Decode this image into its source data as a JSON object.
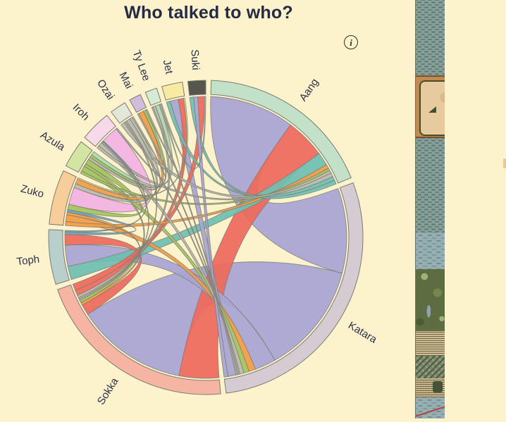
{
  "page": {
    "title": "Who talked to who?",
    "background_color": "#fcf2cc",
    "title_color": "#262b45"
  },
  "info_button": {
    "symbol": "i"
  },
  "chart_data": {
    "type": "chord",
    "title": "Who talked to who?",
    "legend_position": "labels-around-circle",
    "stroke_color": "#7c7c72",
    "label_color": "#2b3049",
    "characters": [
      {
        "name": "Aang",
        "arc_color": "#c3e0c9",
        "ribbon_color": "#6fbfb2"
      },
      {
        "name": "Katara",
        "arc_color": "#d4cbd3",
        "ribbon_color": "#a8a5d3"
      },
      {
        "name": "Sokka",
        "arc_color": "#f6b5a3",
        "ribbon_color": "#ee6a5c"
      },
      {
        "name": "Toph",
        "arc_color": "#b8cfcb",
        "ribbon_color": "#6aa3c8"
      },
      {
        "name": "Zuko",
        "arc_color": "#f7cd9a",
        "ribbon_color": "#f49c44"
      },
      {
        "name": "Azula",
        "arc_color": "#d3e5a2",
        "ribbon_color": "#a3c45c"
      },
      {
        "name": "Iroh",
        "arc_color": "#f8d9e9",
        "ribbon_color": "#f3b3e2"
      },
      {
        "name": "Ozai",
        "arc_color": "#e3e7d8",
        "ribbon_color": "#b9b9af"
      },
      {
        "name": "Mai",
        "arc_color": "#d2bcdc",
        "ribbon_color": "#c9a7d6"
      },
      {
        "name": "Ty Lee",
        "arc_color": "#d5ebd3",
        "ribbon_color": "#abd9ad"
      },
      {
        "name": "Jet",
        "arc_color": "#f7eba4",
        "ribbon_color": "#efdf84"
      },
      {
        "name": "Suki",
        "arc_color": "#56564c",
        "ribbon_color": "#6f6f62"
      }
    ],
    "interactions": [
      {
        "source": "Aang",
        "target": "Katara",
        "value": 32,
        "color": "#a8a5d3"
      },
      {
        "source": "Aang",
        "target": "Sokka",
        "value": 15,
        "color": "#ee6a5c"
      },
      {
        "source": "Aang",
        "target": "Toph",
        "value": 5,
        "color": "#6fbfb2"
      },
      {
        "source": "Aang",
        "target": "Zuko",
        "value": 1.5,
        "color": "#f49c44"
      },
      {
        "source": "Aang",
        "target": "Azula",
        "value": 1,
        "color": "#a3c45c"
      },
      {
        "source": "Aang",
        "target": "Iroh",
        "value": 1,
        "color": "#b9b9af"
      },
      {
        "source": "Aang",
        "target": "Ozai",
        "value": 1.5,
        "color": "#b9b9af"
      },
      {
        "source": "Aang",
        "target": "Jet",
        "value": 1.5,
        "color": "#6fbfb2"
      },
      {
        "source": "Aang",
        "target": "Suki",
        "value": 1.5,
        "color": "#6fbfb2"
      },
      {
        "source": "Katara",
        "target": "Sokka",
        "value": 42,
        "color": "#a8a5d3"
      },
      {
        "source": "Katara",
        "target": "Toph",
        "value": 8,
        "color": "#a8a5d3"
      },
      {
        "source": "Katara",
        "target": "Zuko",
        "value": 2.5,
        "color": "#f49c44"
      },
      {
        "source": "Katara",
        "target": "Azula",
        "value": 2,
        "color": "#a3c45c"
      },
      {
        "source": "Katara",
        "target": "Iroh",
        "value": 1.5,
        "color": "#b9b9af"
      },
      {
        "source": "Katara",
        "target": "Ozai",
        "value": 0.5,
        "color": "#b9b9af"
      },
      {
        "source": "Katara",
        "target": "Mai",
        "value": 0.5,
        "color": "#b9b9af"
      },
      {
        "source": "Katara",
        "target": "Ty Lee",
        "value": 0.5,
        "color": "#b9b9af"
      },
      {
        "source": "Katara",
        "target": "Jet",
        "value": 3,
        "color": "#a8a5d3"
      },
      {
        "source": "Katara",
        "target": "Suki",
        "value": 1.5,
        "color": "#a8a5d3"
      },
      {
        "source": "Sokka",
        "target": "Toph",
        "value": 4,
        "color": "#ee6a5c"
      },
      {
        "source": "Sokka",
        "target": "Zuko",
        "value": 1,
        "color": "#f49c44"
      },
      {
        "source": "Sokka",
        "target": "Azula",
        "value": 1,
        "color": "#a3c45c"
      },
      {
        "source": "Sokka",
        "target": "Iroh",
        "value": 0.5,
        "color": "#b9b9af"
      },
      {
        "source": "Sokka",
        "target": "Ozai",
        "value": 0.5,
        "color": "#b9b9af"
      },
      {
        "source": "Sokka",
        "target": "Ty Lee",
        "value": 1,
        "color": "#b9b9af"
      },
      {
        "source": "Sokka",
        "target": "Jet",
        "value": 2,
        "color": "#ee6a5c"
      },
      {
        "source": "Sokka",
        "target": "Suki",
        "value": 2.5,
        "color": "#ee6a5c"
      },
      {
        "source": "Toph",
        "target": "Zuko",
        "value": 1,
        "color": "#6aa3c8"
      },
      {
        "source": "Toph",
        "target": "Iroh",
        "value": 0.5,
        "color": "#6aa3c8"
      },
      {
        "source": "Zuko",
        "target": "Azula",
        "value": 2,
        "color": "#a3c45c"
      },
      {
        "source": "Zuko",
        "target": "Iroh",
        "value": 6.5,
        "color": "#f3b3e2"
      },
      {
        "source": "Zuko",
        "target": "Ozai",
        "value": 1.5,
        "color": "#b9b9af"
      },
      {
        "source": "Zuko",
        "target": "Mai",
        "value": 2,
        "color": "#f49c44"
      },
      {
        "source": "Zuko",
        "target": "Jet",
        "value": 0.5,
        "color": "#efdf84"
      },
      {
        "source": "Azula",
        "target": "Ozai",
        "value": 1,
        "color": "#b9b9af"
      },
      {
        "source": "Azula",
        "target": "Mai",
        "value": 1,
        "color": "#a3c45c"
      },
      {
        "source": "Azula",
        "target": "Ty Lee",
        "value": 1.5,
        "color": "#abd9ad"
      },
      {
        "source": "Iroh",
        "target": "Ozai",
        "value": 0.5,
        "color": "#b9b9af"
      },
      {
        "source": "Mai",
        "target": "Ty Lee",
        "value": 0.5,
        "color": "#b9b9af"
      },
      {
        "source": "Ty Lee",
        "target": "Suki",
        "value": 0.5,
        "color": "#b9b9af"
      }
    ],
    "layout": {
      "center": [
        292,
        337
      ],
      "outer_radius": 223,
      "inner_radius": 203,
      "ribbon_radius": 200,
      "label_radius": 238,
      "gap_deg": 2,
      "start_angle_deg": 2,
      "direction": "clockwise-from-top"
    }
  },
  "side_image": {
    "name": "avatar-world-map-strip"
  }
}
